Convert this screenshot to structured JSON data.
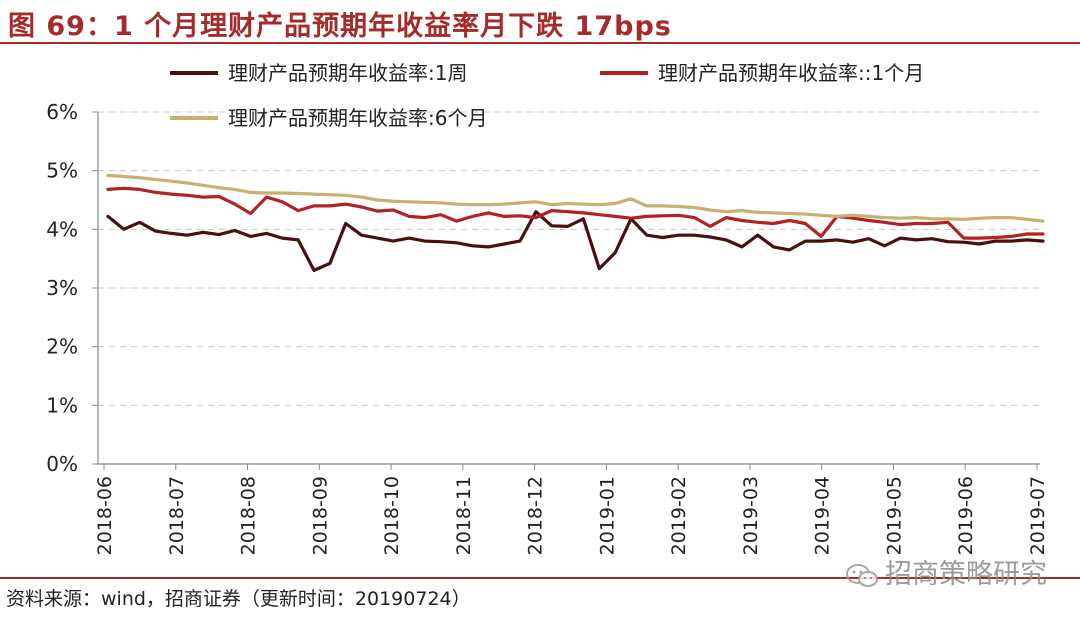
{
  "title": "图 69：1 个月理财产品预期年收益率月下跌 17bps",
  "source": "资料来源：wind，招商证券（更新时间：20190724）",
  "watermark": "招商策略研究",
  "chart_data": {
    "type": "line",
    "y_unit": "%",
    "ylim": [
      0,
      6
    ],
    "yticks": [
      "0%",
      "1%",
      "2%",
      "3%",
      "4%",
      "5%",
      "6%"
    ],
    "xticks": [
      "2018-06",
      "2018-07",
      "2018-08",
      "2018-09",
      "2018-10",
      "2018-11",
      "2018-12",
      "2019-01",
      "2019-02",
      "2019-03",
      "2019-04",
      "2019-05",
      "2019-06",
      "2019-07"
    ],
    "grid": true,
    "legend_position": "top",
    "series": [
      {
        "name": "理财产品预期年收益率:1周",
        "color": "#4a1010",
        "values": [
          4.22,
          4.0,
          4.12,
          3.97,
          3.93,
          3.9,
          3.95,
          3.91,
          3.98,
          3.88,
          3.93,
          3.85,
          3.82,
          3.3,
          3.42,
          4.1,
          3.9,
          3.85,
          3.8,
          3.85,
          3.8,
          3.79,
          3.77,
          3.72,
          3.7,
          3.75,
          3.8,
          4.3,
          4.06,
          4.05,
          4.18,
          3.33,
          3.6,
          4.18,
          3.9,
          3.86,
          3.9,
          3.9,
          3.87,
          3.82,
          3.7,
          3.9,
          3.7,
          3.65,
          3.8,
          3.8,
          3.82,
          3.78,
          3.84,
          3.72,
          3.85,
          3.82,
          3.84,
          3.79,
          3.78,
          3.75,
          3.8,
          3.8,
          3.82,
          3.8
        ]
      },
      {
        "name": "理财产品预期年收益率::1个月",
        "color": "#b22222",
        "values": [
          4.68,
          4.7,
          4.68,
          4.63,
          4.6,
          4.58,
          4.55,
          4.56,
          4.43,
          4.27,
          4.55,
          4.47,
          4.32,
          4.4,
          4.4,
          4.43,
          4.38,
          4.31,
          4.33,
          4.22,
          4.2,
          4.25,
          4.14,
          4.22,
          4.28,
          4.22,
          4.23,
          4.2,
          4.32,
          4.3,
          4.28,
          4.25,
          4.22,
          4.19,
          4.22,
          4.23,
          4.24,
          4.2,
          4.05,
          4.2,
          4.15,
          4.12,
          4.1,
          4.15,
          4.1,
          3.88,
          4.22,
          4.19,
          4.15,
          4.12,
          4.08,
          4.1,
          4.1,
          4.12,
          3.85,
          3.85,
          3.86,
          3.88,
          3.92,
          3.92
        ]
      },
      {
        "name": "理财产品预期年收益率:6个月",
        "color": "#c8b070",
        "values": [
          4.92,
          4.9,
          4.88,
          4.85,
          4.82,
          4.79,
          4.75,
          4.71,
          4.68,
          4.63,
          4.62,
          4.62,
          4.61,
          4.6,
          4.59,
          4.58,
          4.55,
          4.5,
          4.48,
          4.47,
          4.46,
          4.45,
          4.43,
          4.42,
          4.42,
          4.43,
          4.45,
          4.47,
          4.42,
          4.44,
          4.43,
          4.42,
          4.44,
          4.52,
          4.4,
          4.4,
          4.39,
          4.37,
          4.33,
          4.3,
          4.32,
          4.29,
          4.28,
          4.27,
          4.26,
          4.24,
          4.22,
          4.24,
          4.22,
          4.2,
          4.19,
          4.2,
          4.18,
          4.18,
          4.17,
          4.19,
          4.2,
          4.2,
          4.17,
          4.14
        ]
      }
    ]
  }
}
